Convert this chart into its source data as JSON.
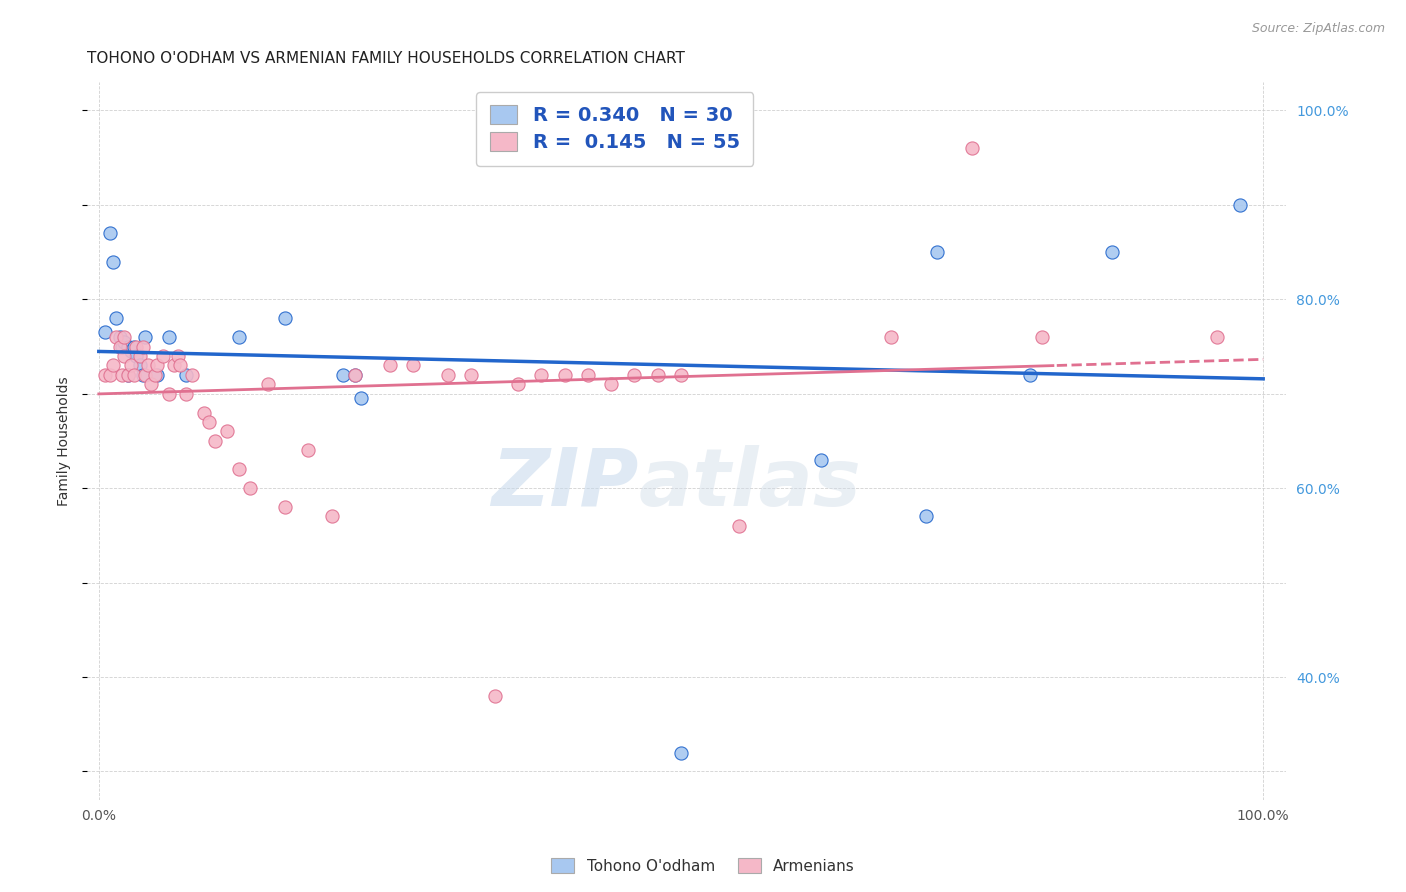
{
  "title": "TOHONO O'ODHAM VS ARMENIAN FAMILY HOUSEHOLDS CORRELATION CHART",
  "source": "Source: ZipAtlas.com",
  "ylabel": "Family Households",
  "legend_blue_r": "R = 0.340",
  "legend_blue_n": "N = 30",
  "legend_pink_r": "R =  0.145",
  "legend_pink_n": "N = 55",
  "blue_scatter_x": [
    0.005,
    0.01,
    0.012,
    0.015,
    0.018,
    0.02,
    0.022,
    0.025,
    0.025,
    0.028,
    0.03,
    0.032,
    0.035,
    0.038,
    0.04,
    0.05,
    0.06,
    0.075,
    0.12,
    0.16,
    0.21,
    0.22,
    0.225,
    0.5,
    0.62,
    0.71,
    0.72,
    0.8,
    0.87,
    0.98
  ],
  "blue_scatter_y": [
    0.765,
    0.87,
    0.84,
    0.78,
    0.76,
    0.75,
    0.755,
    0.75,
    0.72,
    0.745,
    0.75,
    0.74,
    0.73,
    0.72,
    0.76,
    0.72,
    0.76,
    0.72,
    0.76,
    0.78,
    0.72,
    0.72,
    0.695,
    0.32,
    0.63,
    0.57,
    0.85,
    0.72,
    0.85,
    0.9
  ],
  "pink_scatter_x": [
    0.005,
    0.01,
    0.012,
    0.015,
    0.018,
    0.02,
    0.022,
    0.022,
    0.025,
    0.028,
    0.03,
    0.032,
    0.035,
    0.038,
    0.04,
    0.042,
    0.045,
    0.048,
    0.05,
    0.055,
    0.06,
    0.065,
    0.068,
    0.07,
    0.075,
    0.08,
    0.09,
    0.095,
    0.1,
    0.11,
    0.12,
    0.13,
    0.145,
    0.16,
    0.18,
    0.2,
    0.22,
    0.25,
    0.27,
    0.3,
    0.32,
    0.34,
    0.36,
    0.38,
    0.4,
    0.42,
    0.44,
    0.46,
    0.48,
    0.5,
    0.55,
    0.68,
    0.75,
    0.81,
    0.96
  ],
  "pink_scatter_y": [
    0.72,
    0.72,
    0.73,
    0.76,
    0.75,
    0.72,
    0.74,
    0.76,
    0.72,
    0.73,
    0.72,
    0.75,
    0.74,
    0.75,
    0.72,
    0.73,
    0.71,
    0.72,
    0.73,
    0.74,
    0.7,
    0.73,
    0.74,
    0.73,
    0.7,
    0.72,
    0.68,
    0.67,
    0.65,
    0.66,
    0.62,
    0.6,
    0.71,
    0.58,
    0.64,
    0.57,
    0.72,
    0.73,
    0.73,
    0.72,
    0.72,
    0.38,
    0.71,
    0.72,
    0.72,
    0.72,
    0.71,
    0.72,
    0.72,
    0.72,
    0.56,
    0.76,
    0.96,
    0.76,
    0.76
  ],
  "blue_color": "#a8c8f0",
  "pink_color": "#f5b8c8",
  "blue_line_color": "#2266cc",
  "pink_line_color": "#e07090",
  "watermark_zip": "ZIP",
  "watermark_atlas": "atlas",
  "title_fontsize": 11,
  "axis_fontsize": 9,
  "right_tick_color": "#4499dd"
}
